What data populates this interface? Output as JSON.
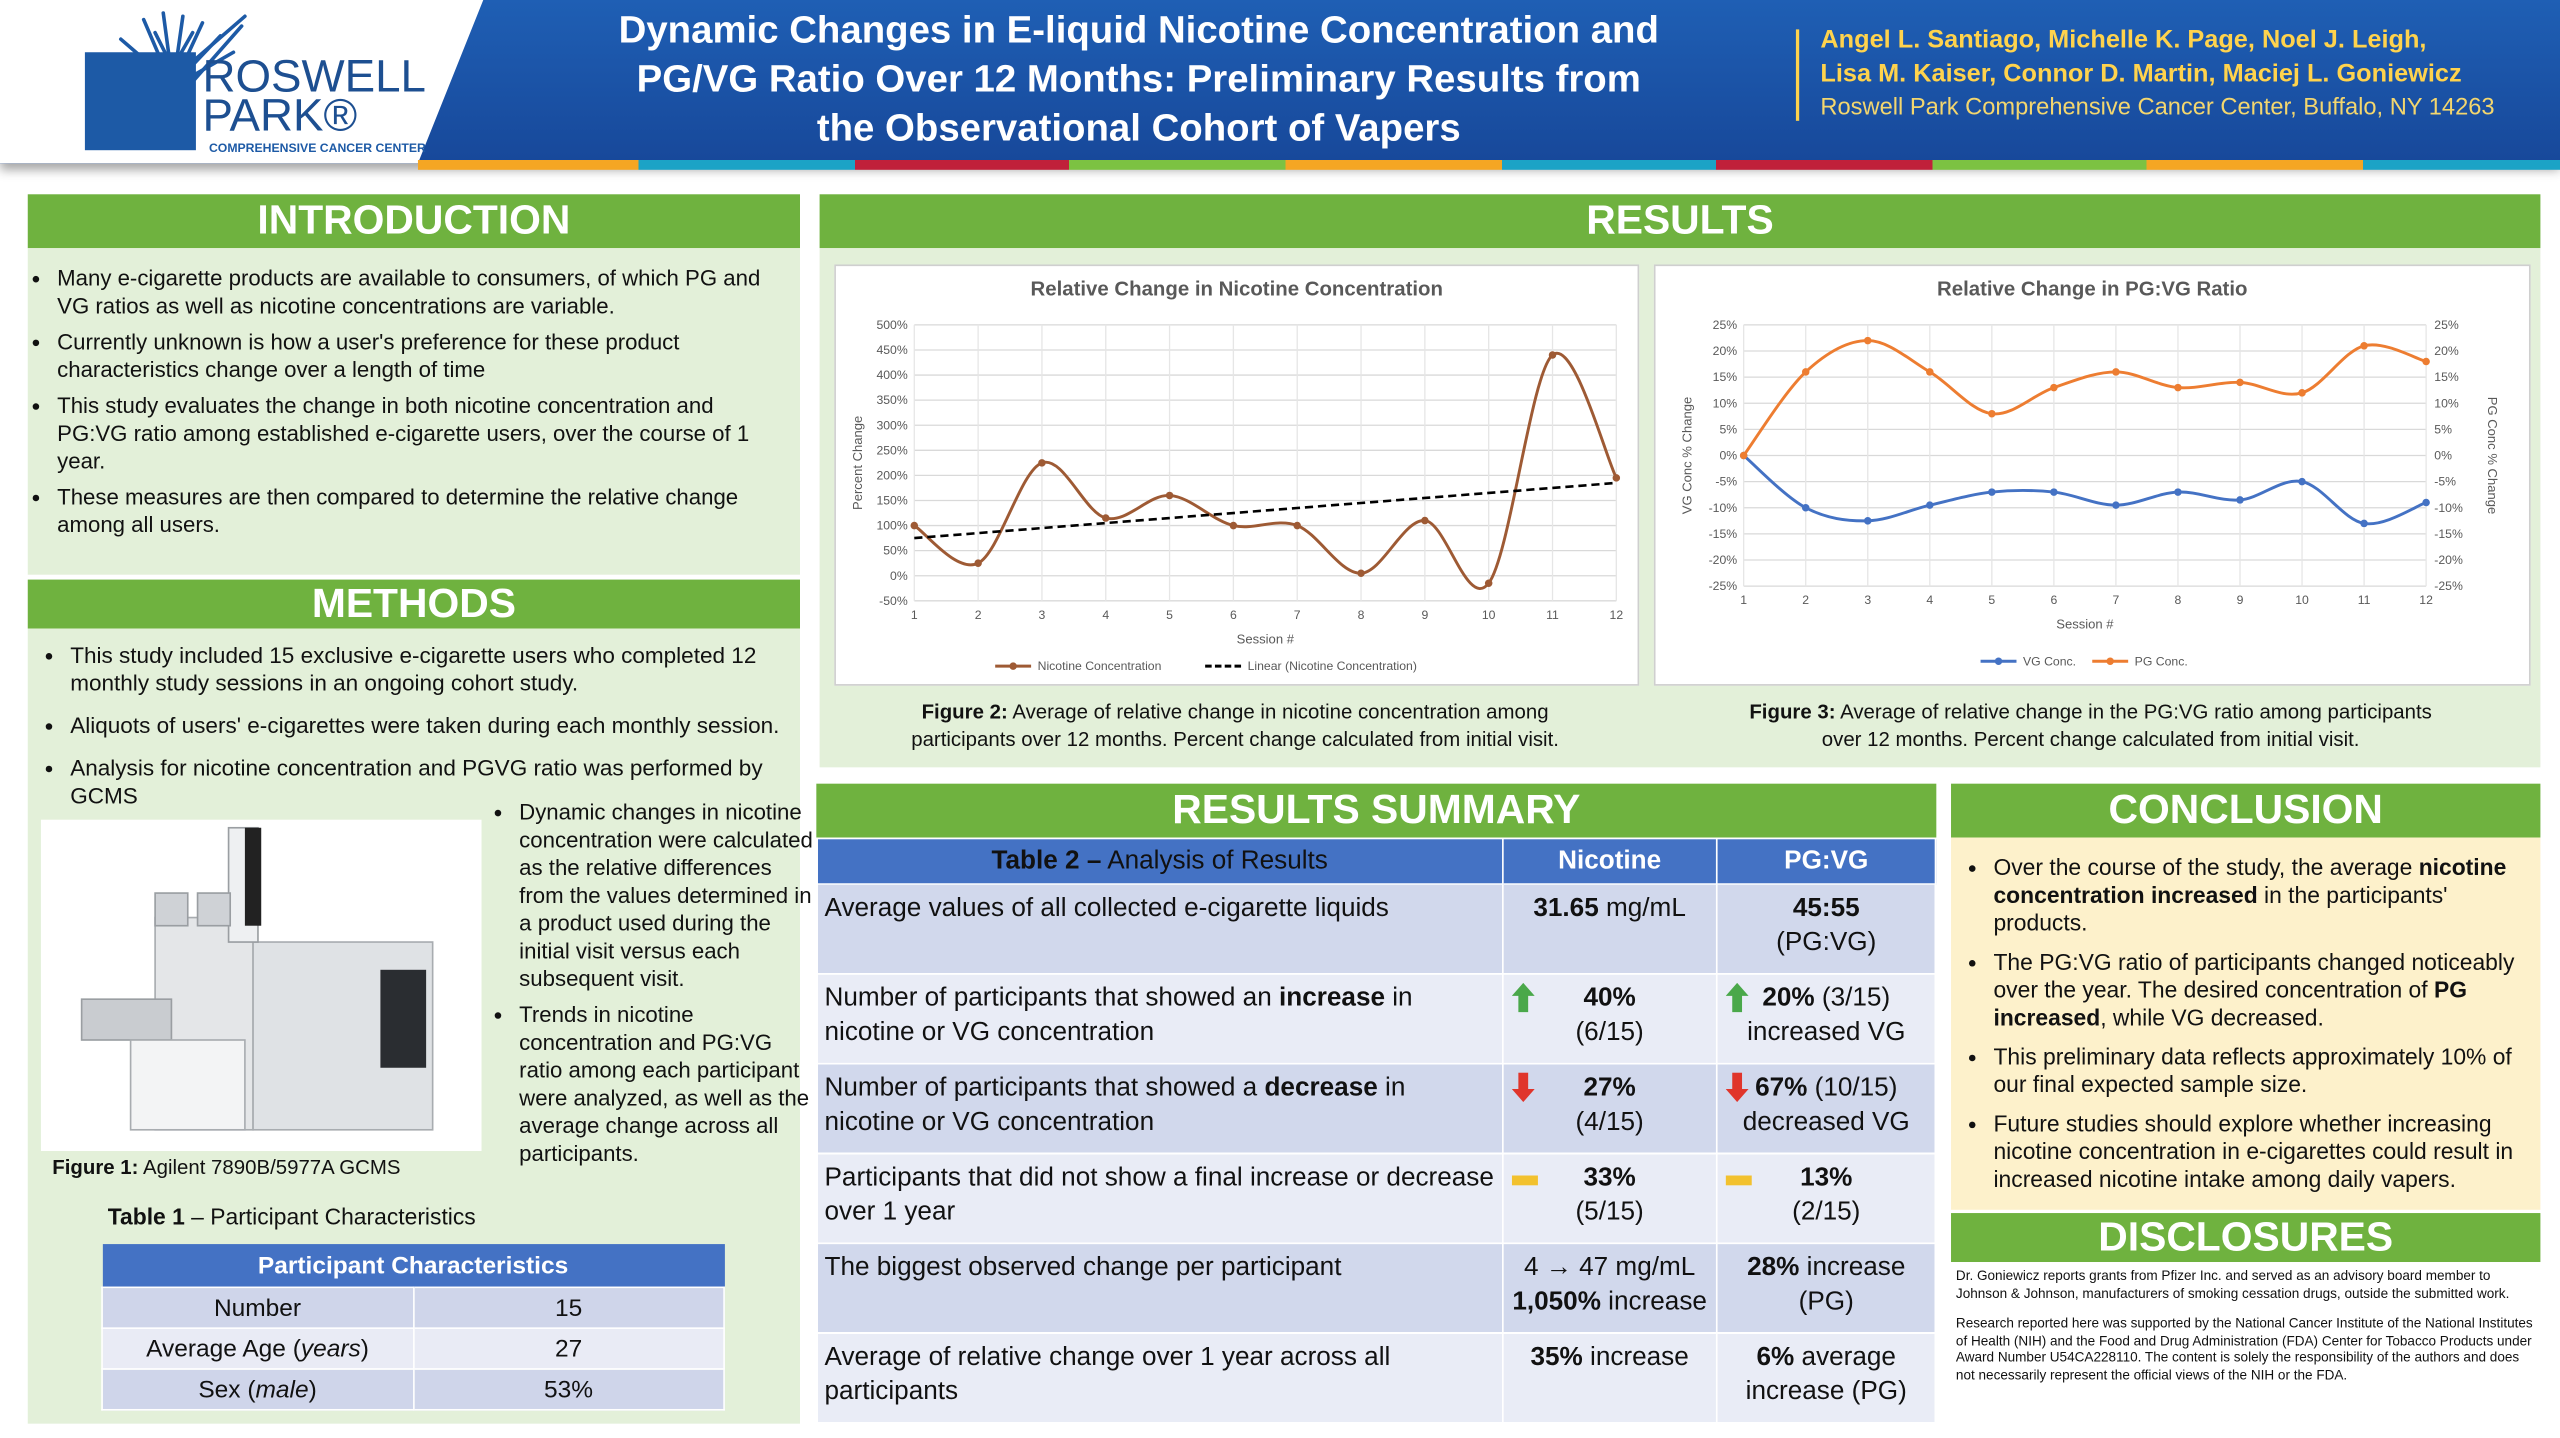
{
  "header": {
    "logo": {
      "name_lines": [
        "ROSWELL",
        "PARK®"
      ],
      "subtitle": "COMPREHENSIVE CANCER CENTER"
    },
    "title_lines": [
      "Dynamic Changes in E-liquid Nicotine Concentration and",
      "PG/VG Ratio Over 12 Months: Preliminary Results from",
      "the Observational Cohort of Vapers"
    ],
    "author_lines": [
      "Angel L. Santiago, Michelle K. Page, Noel J. Leigh,",
      "Lisa M. Kaiser, Connor D. Martin, Maciej L. Goniewicz"
    ],
    "affiliation": "Roswell Park Comprehensive Cancer Center, Buffalo, NY 14263"
  },
  "introduction": {
    "heading": "INTRODUCTION",
    "bullets": [
      "Many e-cigarette products are available to consumers, of which PG and VG ratios as well as nicotine concentrations are variable.",
      "Currently unknown is how a user's preference for these product characteristics change over a length of time",
      "This study evaluates the change in both nicotine concentration and PG:VG ratio among established e-cigarette users, over the course of 1 year.",
      "These measures are then compared to determine the relative change among all users."
    ]
  },
  "methods": {
    "heading": "METHODS",
    "bullets": [
      "This study included 15 exclusive e-cigarette users who completed 12 monthly study sessions in an ongoing cohort study.",
      "Aliquots of users' e-cigarettes were taken during each monthly session.",
      "Analysis for nicotine concentration and PGVG ratio was performed by GCMS"
    ],
    "side_bullets": [
      "Dynamic changes in nicotine concentration were calculated as the relative differences from the values determined in a product used during the initial visit versus each subsequent visit.",
      "Trends in nicotine concentration and PG:VG ratio among each participant were analyzed, as well as the average change across all participants."
    ],
    "figure_caption": [
      {
        "text": "Figure 1:",
        "bold": true
      },
      {
        "text": " Agilent 7890B/5977A GCMS"
      }
    ],
    "table_caption": [
      {
        "text": "Table 1",
        "bold": true
      },
      {
        "text": " – Participant Characteristics"
      }
    ],
    "table": {
      "header": "Participant Characteristics",
      "rows": [
        [
          "Number",
          "15"
        ],
        [
          [
            {
              "text": "Average Age ("
            },
            {
              "text": "years",
              "italic": true
            },
            {
              "text": ")"
            }
          ],
          "27"
        ],
        [
          [
            {
              "text": "Sex ("
            },
            {
              "text": "male",
              "italic": true
            },
            {
              "text": ")"
            }
          ],
          "53%"
        ]
      ]
    }
  },
  "results": {
    "heading": "RESULTS",
    "figures": [
      {
        "chart_data": {
          "type": "line",
          "title": "Relative Change in Nicotine Concentration",
          "xlabel": "Session #",
          "ylabel": "Percent Change",
          "x": [
            1,
            2,
            3,
            4,
            5,
            6,
            7,
            8,
            9,
            10,
            11,
            12
          ],
          "xlim": [
            1,
            12
          ],
          "xticks": [
            1,
            2,
            3,
            4,
            5,
            6,
            7,
            8,
            9,
            10,
            11,
            12
          ],
          "ylim": [
            -50,
            500
          ],
          "yticks": [
            {
              "value": -50,
              "label": "-50%"
            },
            {
              "value": 0,
              "label": "0%"
            },
            {
              "value": 50,
              "label": "50%"
            },
            {
              "value": 100,
              "label": "100%"
            },
            {
              "value": 150,
              "label": "150%"
            },
            {
              "value": 200,
              "label": "200%"
            },
            {
              "value": 250,
              "label": "250%"
            },
            {
              "value": 300,
              "label": "300%"
            },
            {
              "value": 350,
              "label": "350%"
            },
            {
              "value": 400,
              "label": "400%"
            },
            {
              "value": 450,
              "label": "450%"
            },
            {
              "value": 500,
              "label": "500%"
            }
          ],
          "grid": true,
          "legend": "bottom",
          "series": [
            {
              "name": "Nicotine Concentration",
              "color": "#9e5a34",
              "marker": true,
              "values": [
                100,
                25,
                225,
                115,
                160,
                100,
                100,
                5,
                110,
                -15,
                440,
                195
              ]
            },
            {
              "name": "Linear (Nicotine Concentration)",
              "color": "#000000",
              "dash": true,
              "values": [
                75,
                85,
                95,
                105,
                115,
                125,
                135,
                145,
                155,
                165,
                175,
                185
              ]
            }
          ]
        },
        "caption": [
          [
            {
              "text": "Figure 2:",
              "bold": true
            },
            {
              "text": " Average of relative change in nicotine concentration among"
            }
          ],
          [
            {
              "text": "participants over 12 months. Percent change calculated from initial visit."
            }
          ]
        ]
      },
      {
        "chart_data": {
          "type": "line",
          "title": "Relative Change in PG:VG Ratio",
          "xlabel": "Session #",
          "ylabel": "VG Conc % Change",
          "y2label": "PG Conc % Change",
          "x": [
            1,
            2,
            3,
            4,
            5,
            6,
            7,
            8,
            9,
            10,
            11,
            12
          ],
          "xlim": [
            1,
            12
          ],
          "xticks": [
            1,
            2,
            3,
            4,
            5,
            6,
            7,
            8,
            9,
            10,
            11,
            12
          ],
          "ylim": [
            -25,
            25
          ],
          "yticks": [
            {
              "value": -25,
              "label": "-25%"
            },
            {
              "value": -20,
              "label": "-20%"
            },
            {
              "value": -15,
              "label": "-15%"
            },
            {
              "value": -10,
              "label": "-10%"
            },
            {
              "value": -5,
              "label": "-5%"
            },
            {
              "value": 0,
              "label": "0%"
            },
            {
              "value": 5,
              "label": "5%"
            },
            {
              "value": 10,
              "label": "10%"
            },
            {
              "value": 15,
              "label": "15%"
            },
            {
              "value": 20,
              "label": "20%"
            },
            {
              "value": 25,
              "label": "25%"
            }
          ],
          "y2lim": [
            -25,
            25
          ],
          "y2ticks": [
            {
              "value": -25,
              "label": "-25%"
            },
            {
              "value": -20,
              "label": "-20%"
            },
            {
              "value": -15,
              "label": "-15%"
            },
            {
              "value": -10,
              "label": "-10%"
            },
            {
              "value": -5,
              "label": "-5%"
            },
            {
              "value": 0,
              "label": "0%"
            },
            {
              "value": 5,
              "label": "5%"
            },
            {
              "value": 10,
              "label": "10%"
            },
            {
              "value": 15,
              "label": "15%"
            },
            {
              "value": 20,
              "label": "20%"
            },
            {
              "value": 25,
              "label": "25%"
            }
          ],
          "grid": true,
          "legend": "bottom",
          "series": [
            {
              "name": "VG Conc.",
              "color": "#4472c4",
              "marker": true,
              "values": [
                0,
                -10,
                -12.5,
                -9.5,
                -7,
                -7,
                -9.5,
                -7,
                -8.5,
                -5,
                -13,
                -9
              ]
            },
            {
              "name": "PG Conc.",
              "color": "#ed7d31",
              "marker": true,
              "axis": "y2",
              "values": [
                0,
                16,
                22,
                16,
                8,
                13,
                16,
                13,
                14,
                12,
                21,
                18
              ]
            }
          ]
        },
        "caption": [
          [
            {
              "text": "Figure 3:",
              "bold": true
            },
            {
              "text": " Average of relative change in the PG:VG ratio among participants"
            }
          ],
          [
            {
              "text": "over 12 months. Percent change calculated from initial visit."
            }
          ]
        ]
      }
    ]
  },
  "results_summary": {
    "heading": "RESULTS SUMMARY",
    "table": {
      "header": [
        [
          {
            "text": "Table 2 –",
            "bold": true
          },
          {
            "text": "  Analysis of Results"
          }
        ],
        "Nicotine",
        "PG:VG"
      ],
      "rows": [
        [
          "Average values of all collected e-cigarette liquids",
          [
            [
              {
                "text": "31.65",
                "bold": true
              },
              {
                "text": " mg/mL"
              }
            ]
          ],
          [
            [
              {
                "text": "45:55",
                "bold": true
              }
            ],
            [
              {
                "text": "(PG:VG)"
              }
            ]
          ]
        ],
        [
          [
            {
              "text": "Number of participants that showed an "
            },
            {
              "text": "increase",
              "bold": true
            },
            {
              "text": " in nicotine or VG concentration"
            }
          ],
          [
            [
              {
                "text": "40%",
                "bold": true
              }
            ],
            [
              {
                "text": "(6/15)"
              }
            ]
          ],
          [
            [
              {
                "text": "20%",
                "bold": true
              },
              {
                "text": " (3/15)"
              }
            ],
            [
              {
                "text": "increased VG"
              }
            ]
          ]
        ],
        [
          [
            {
              "text": "Number of participants that showed a "
            },
            {
              "text": "decrease",
              "bold": true
            },
            {
              "text": " in nicotine or VG concentration"
            }
          ],
          [
            [
              {
                "text": "27%",
                "bold": true
              }
            ],
            [
              {
                "text": "(4/15)"
              }
            ]
          ],
          [
            [
              {
                "text": "67%",
                "bold": true
              },
              {
                "text": " (10/15)"
              }
            ],
            [
              {
                "text": "decreased VG"
              }
            ]
          ]
        ],
        [
          "Participants that did not show a final increase or decrease over 1 year",
          [
            [
              {
                "text": "33%",
                "bold": true
              }
            ],
            [
              {
                "text": "(5/15)"
              }
            ]
          ],
          [
            [
              {
                "text": "13%",
                "bold": true
              }
            ],
            [
              {
                "text": "(2/15)"
              }
            ]
          ]
        ],
        [
          "The biggest observed change per participant",
          [
            [
              {
                "text": "4 → 47 mg/mL"
              }
            ],
            [
              {
                "text": "1,050%",
                "bold": true
              },
              {
                "text": " increase"
              }
            ]
          ],
          [
            [
              {
                "text": "28%",
                "bold": true
              },
              {
                "text": " increase"
              }
            ],
            [
              {
                "text": "(PG)"
              }
            ]
          ]
        ],
        [
          "Average of relative change over 1 year across all participants",
          [
            [
              {
                "text": "35%",
                "bold": true
              },
              {
                "text": " increase"
              }
            ]
          ],
          [
            [
              {
                "text": "6%",
                "bold": true
              },
              {
                "text": " average"
              }
            ],
            [
              {
                "text": "increase (PG)"
              }
            ]
          ]
        ]
      ]
    }
  },
  "conclusion": {
    "heading": "CONCLUSION",
    "bullets": [
      [
        {
          "text": "Over the course of the study, the average "
        },
        {
          "text": "nicotine concentration increased",
          "bold": true
        },
        {
          "text": " in the participants' products."
        }
      ],
      [
        {
          "text": "The PG:VG ratio of participants changed noticeably over the year. The desired concentration of "
        },
        {
          "text": "PG increased",
          "bold": true
        },
        {
          "text": ", while VG decreased."
        }
      ],
      "This preliminary data reflects approximately 10% of our final expected sample size.",
      "Future studies should explore whether increasing nicotine concentration in e-cigarettes could result in increased nicotine intake among daily vapers."
    ]
  },
  "disclosures": {
    "heading": "DISCLOSURES",
    "paragraphs": [
      "Dr. Goniewicz reports grants from Pfizer Inc. and served as an advisory board member to Johnson & Johnson, manufacturers of smoking cessation drugs, outside the submitted work.",
      "Research reported here was supported by the National Cancer Institute of the National Institutes of Health (NIH) and the Food and Drug Administration (FDA) Center for Tobacco Products under Award Number U54CA228110. The content is solely the responsibility of the authors and does not necessarily represent the official views of the NIH or the FDA."
    ]
  }
}
